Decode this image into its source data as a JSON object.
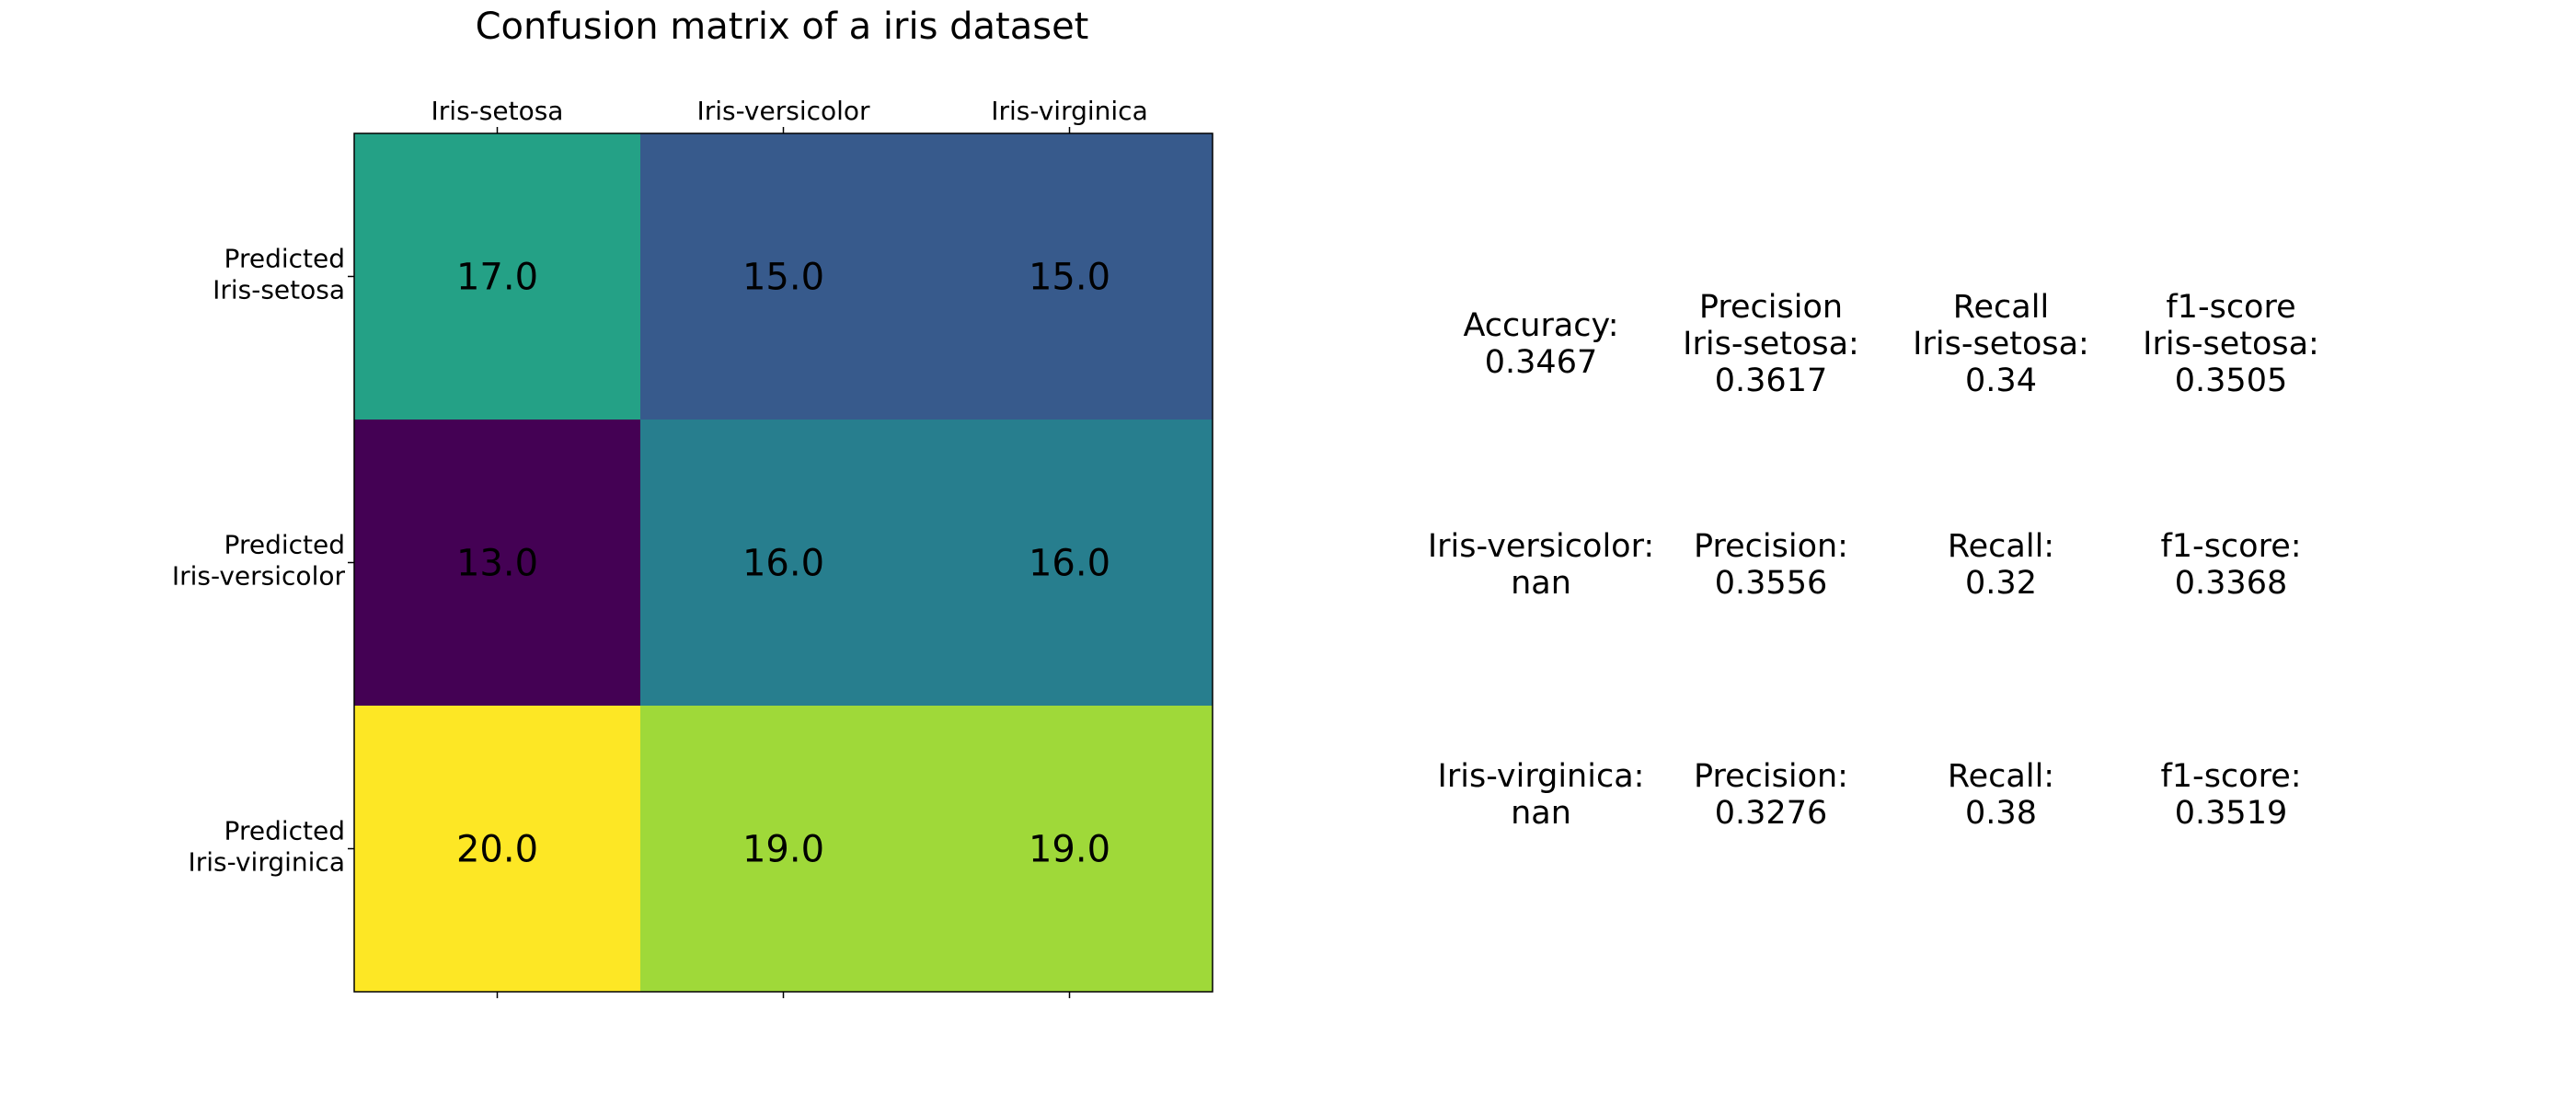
{
  "chart_data": {
    "type": "heatmap",
    "title": "Confusion matrix of a iris dataset",
    "colormap": "viridis",
    "x_labels": [
      "Iris-setosa",
      "Iris-versicolor",
      "Iris-virginica"
    ],
    "y_labels": [
      [
        "Predicted",
        "Iris-setosa"
      ],
      [
        "Predicted",
        "Iris-versicolor"
      ],
      [
        "Predicted",
        "Iris-virginica"
      ]
    ],
    "values": [
      [
        17.0,
        15.0,
        15.0
      ],
      [
        13.0,
        16.0,
        16.0
      ],
      [
        20.0,
        19.0,
        19.0
      ]
    ],
    "value_labels": [
      [
        "17.0",
        "15.0",
        "15.0"
      ],
      [
        "13.0",
        "16.0",
        "16.0"
      ],
      [
        "20.0",
        "19.0",
        "19.0"
      ]
    ],
    "color_range": [
      13,
      20
    ],
    "x_axis_position": "top",
    "grid": false
  },
  "metrics": {
    "overall": [
      [
        [
          "Accuracy:",
          "0.3467"
        ],
        [
          "Precision",
          "Iris-setosa:",
          "0.3617"
        ],
        [
          "Recall",
          "Iris-setosa:",
          "0.34"
        ],
        [
          "f1-score",
          "Iris-setosa:",
          "0.3505"
        ]
      ],
      [
        [
          "Iris-versicolor:",
          "nan"
        ],
        [
          "Precision:",
          "0.3556"
        ],
        [
          "Recall:",
          "0.32"
        ],
        [
          "f1-score:",
          "0.3368"
        ]
      ],
      [
        [
          "Iris-virginica:",
          "nan"
        ],
        [
          "Precision:",
          "0.3276"
        ],
        [
          "Recall:",
          "0.38"
        ],
        [
          "f1-score:",
          "0.3519"
        ]
      ]
    ]
  }
}
